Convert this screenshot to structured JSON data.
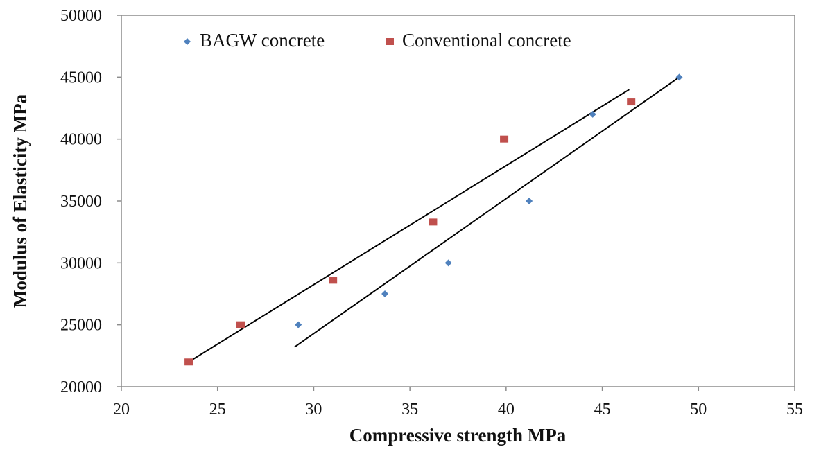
{
  "chart_data": {
    "type": "scatter",
    "title": "",
    "xlabel": "Compressive strength MPa",
    "ylabel": "Modulus of Elasticity MPa",
    "xlim": [
      20,
      55
    ],
    "ylim": [
      20000,
      50000
    ],
    "xticks": [
      20,
      25,
      30,
      35,
      40,
      45,
      50,
      55
    ],
    "yticks": [
      20000,
      25000,
      30000,
      35000,
      40000,
      45000,
      50000
    ],
    "xtick_labels": [
      "20",
      "25",
      "30",
      "35",
      "40",
      "45",
      "50",
      "55"
    ],
    "ytick_labels": [
      "20000",
      "25000",
      "30000",
      "35000",
      "40000",
      "45000",
      "50000"
    ],
    "grid": false,
    "legend_position": "top-left",
    "series": [
      {
        "name": "BAGW concrete",
        "marker": "diamond",
        "color": "#4f81bd",
        "points": [
          [
            29.2,
            25000
          ],
          [
            33.7,
            27500
          ],
          [
            37.0,
            30000
          ],
          [
            41.2,
            35000
          ],
          [
            44.5,
            42000
          ],
          [
            49.0,
            45000
          ]
        ]
      },
      {
        "name": "Conventional concrete",
        "marker": "square",
        "color": "#c0504d",
        "points": [
          [
            23.5,
            22000
          ],
          [
            26.2,
            25000
          ],
          [
            31.0,
            28600
          ],
          [
            36.2,
            33300
          ],
          [
            39.9,
            40000
          ],
          [
            46.5,
            43000
          ]
        ]
      }
    ],
    "trendlines": [
      {
        "series": "BAGW concrete",
        "type": "linear",
        "color": "#000000",
        "x_range": [
          29.0,
          49.0
        ],
        "y_range": [
          23200,
          45000
        ]
      },
      {
        "series": "Conventional concrete",
        "type": "linear",
        "color": "#000000",
        "x_range": [
          23.5,
          46.4
        ],
        "y_range": [
          22000,
          44000
        ]
      }
    ]
  }
}
